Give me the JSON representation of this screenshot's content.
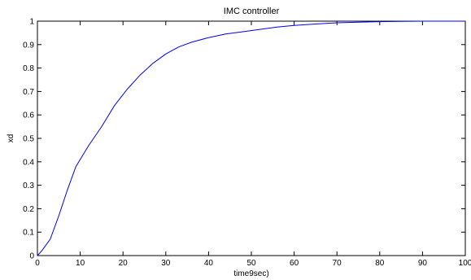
{
  "chart_data": {
    "type": "line",
    "title": "IMC controller",
    "xlabel": "time9sec)",
    "ylabel": "xd",
    "xlim": [
      0,
      100
    ],
    "ylim": [
      0,
      1
    ],
    "x_ticks": [
      "0",
      "10",
      "20",
      "30",
      "40",
      "50",
      "60",
      "70",
      "80",
      "90",
      "100"
    ],
    "y_ticks": [
      "0",
      "0.1",
      "0.2",
      "0.3",
      "0.4",
      "0.5",
      "0.6",
      "0.7",
      "0.8",
      "0.9",
      "1"
    ],
    "grid": false,
    "line_color": "#0000ff",
    "series": [
      {
        "x": [
          0,
          1,
          3,
          5,
          7,
          9,
          12,
          15,
          18,
          21,
          24,
          27,
          30,
          33,
          36,
          40,
          44,
          48,
          52,
          56,
          60,
          65,
          70,
          75,
          80,
          85,
          90,
          95,
          100
        ],
        "values": [
          0,
          0.02,
          0.07,
          0.17,
          0.28,
          0.38,
          0.47,
          0.55,
          0.64,
          0.71,
          0.77,
          0.82,
          0.86,
          0.89,
          0.91,
          0.93,
          0.945,
          0.955,
          0.965,
          0.975,
          0.982,
          0.988,
          0.993,
          0.996,
          0.998,
          0.999,
          1.0,
          1.0,
          1.0
        ]
      }
    ]
  }
}
